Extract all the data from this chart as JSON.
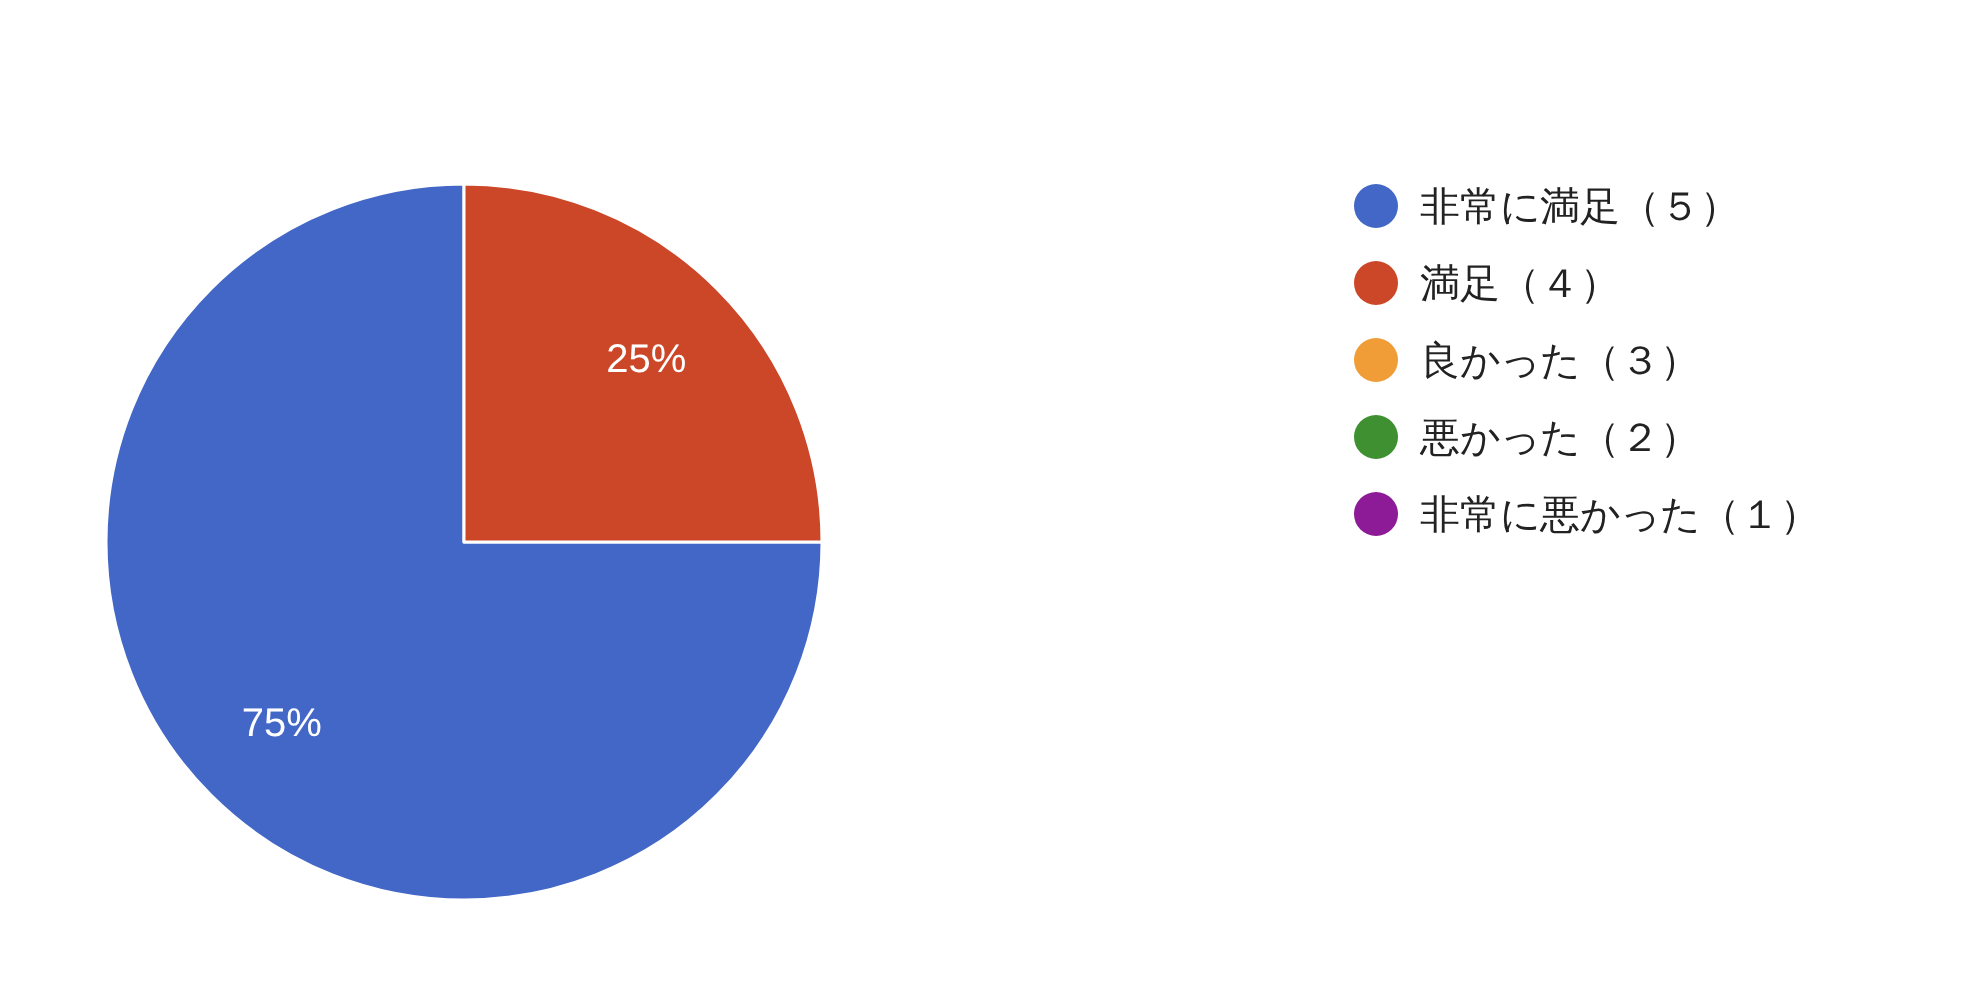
{
  "chart_data": {
    "type": "pie",
    "categories": [
      "非常に満足（５）",
      "満足（４）",
      "良かった（３）",
      "悪かった（２）",
      "非常に悪かった（１）"
    ],
    "values": [
      75,
      25,
      0,
      0,
      0
    ],
    "colors": [
      "#4267c6",
      "#cb4728",
      "#f09d38",
      "#3e9031",
      "#8d1a96"
    ],
    "value_labels": [
      "75%",
      "25%",
      null,
      null,
      null
    ],
    "legend": "right"
  }
}
